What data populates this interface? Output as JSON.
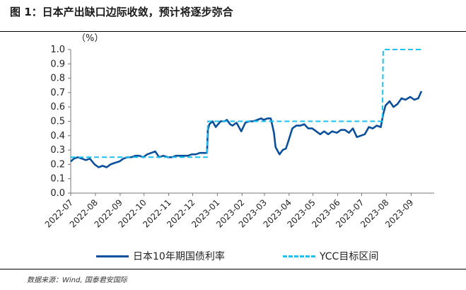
{
  "figure": {
    "title": "图 1：日本产出缺口边际收敛，预计将逐步弥合",
    "source": "数据来源：Wind, 国泰君安国际"
  },
  "colors": {
    "series1": "#0a4f9c",
    "series2": "#19c2f0"
  },
  "chart_data": {
    "type": "line",
    "unit_label": "（%）",
    "ylim": [
      0,
      1.0
    ],
    "yticks": [
      "0.0",
      "0.1",
      "0.2",
      "0.3",
      "0.4",
      "0.5",
      "0.6",
      "0.7",
      "0.8",
      "0.9",
      "1.0"
    ],
    "xticks": [
      "2022-07",
      "2022-08",
      "2022-09",
      "2022-10",
      "2022-11",
      "2022-12",
      "2023-01",
      "2023-02",
      "2023-03",
      "2023-04",
      "2023-05",
      "2023-06",
      "2023-07",
      "2023-08",
      "2023-09"
    ],
    "grid": false,
    "legend_position": "bottom",
    "series": [
      {
        "name": "日本10年期国债利率",
        "style": "solid",
        "x": [
          "2022-07-01",
          "2022-07-05",
          "2022-07-10",
          "2022-07-15",
          "2022-07-20",
          "2022-07-25",
          "2022-07-31",
          "2022-08-05",
          "2022-08-10",
          "2022-08-15",
          "2022-08-20",
          "2022-08-25",
          "2022-08-31",
          "2022-09-05",
          "2022-09-10",
          "2022-09-15",
          "2022-09-20",
          "2022-09-25",
          "2022-09-30",
          "2022-10-05",
          "2022-10-10",
          "2022-10-15",
          "2022-10-20",
          "2022-10-25",
          "2022-10-31",
          "2022-11-05",
          "2022-11-10",
          "2022-11-15",
          "2022-11-20",
          "2022-11-25",
          "2022-11-30",
          "2022-12-05",
          "2022-12-10",
          "2022-12-15",
          "2022-12-19",
          "2022-12-20",
          "2022-12-22",
          "2022-12-26",
          "2022-12-30",
          "2023-01-05",
          "2023-01-10",
          "2023-01-13",
          "2023-01-17",
          "2023-01-20",
          "2023-01-25",
          "2023-01-31",
          "2023-02-05",
          "2023-02-10",
          "2023-02-15",
          "2023-02-20",
          "2023-02-25",
          "2023-02-28",
          "2023-03-05",
          "2023-03-09",
          "2023-03-13",
          "2023-03-15",
          "2023-03-20",
          "2023-03-24",
          "2023-03-28",
          "2023-03-31",
          "2023-04-05",
          "2023-04-10",
          "2023-04-15",
          "2023-04-20",
          "2023-04-25",
          "2023-04-30",
          "2023-05-05",
          "2023-05-10",
          "2023-05-15",
          "2023-05-20",
          "2023-05-25",
          "2023-05-31",
          "2023-06-05",
          "2023-06-10",
          "2023-06-15",
          "2023-06-20",
          "2023-06-25",
          "2023-06-30",
          "2023-07-05",
          "2023-07-10",
          "2023-07-15",
          "2023-07-20",
          "2023-07-25",
          "2023-07-28",
          "2023-07-31",
          "2023-08-05",
          "2023-08-10",
          "2023-08-15",
          "2023-08-20",
          "2023-08-25",
          "2023-08-31",
          "2023-09-05",
          "2023-09-10",
          "2023-09-14"
        ],
        "y": [
          0.22,
          0.24,
          0.25,
          0.24,
          0.23,
          0.24,
          0.2,
          0.18,
          0.19,
          0.18,
          0.2,
          0.21,
          0.22,
          0.24,
          0.25,
          0.25,
          0.26,
          0.26,
          0.25,
          0.27,
          0.28,
          0.29,
          0.25,
          0.26,
          0.25,
          0.25,
          0.26,
          0.26,
          0.26,
          0.26,
          0.27,
          0.27,
          0.28,
          0.28,
          0.28,
          0.44,
          0.48,
          0.5,
          0.46,
          0.5,
          0.5,
          0.51,
          0.48,
          0.47,
          0.49,
          0.43,
          0.49,
          0.5,
          0.5,
          0.51,
          0.52,
          0.51,
          0.52,
          0.52,
          0.42,
          0.32,
          0.27,
          0.3,
          0.31,
          0.36,
          0.45,
          0.47,
          0.47,
          0.48,
          0.45,
          0.45,
          0.43,
          0.41,
          0.43,
          0.41,
          0.43,
          0.42,
          0.44,
          0.44,
          0.42,
          0.45,
          0.39,
          0.4,
          0.41,
          0.46,
          0.45,
          0.47,
          0.46,
          0.55,
          0.61,
          0.64,
          0.6,
          0.62,
          0.66,
          0.65,
          0.67,
          0.65,
          0.66,
          0.71
        ]
      },
      {
        "name": "YCC目标区间",
        "style": "dashed",
        "x": [
          "2022-07-01",
          "2022-12-19",
          "2022-12-20",
          "2023-07-27",
          "2023-07-28",
          "2023-09-14"
        ],
        "y": [
          0.25,
          0.25,
          0.5,
          0.5,
          1.0,
          1.0
        ]
      }
    ]
  }
}
